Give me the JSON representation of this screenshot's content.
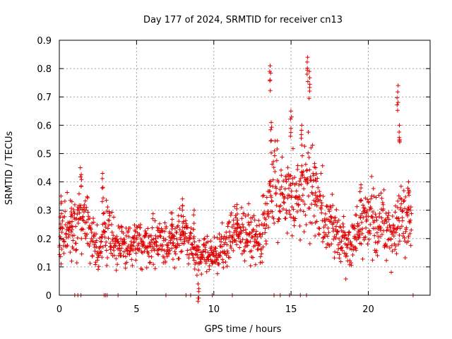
{
  "chart_data": {
    "type": "scatter",
    "title": "Day 177 of 2024, SRMTID for receiver cn13",
    "xlabel": "GPS time / hours",
    "ylabel": "SRMTID / TECUs",
    "xlim": [
      0,
      24
    ],
    "ylim": [
      0,
      0.9
    ],
    "x_ticks": [
      0,
      5,
      10,
      15,
      20
    ],
    "x_tick_labels": [
      "0",
      "5",
      "10",
      "15",
      "20"
    ],
    "y_ticks": [
      0,
      0.1,
      0.2,
      0.3,
      0.4,
      0.5,
      0.6,
      0.7,
      0.8,
      0.9
    ],
    "y_tick_labels": [
      "0",
      "0.1",
      "0.2",
      "0.3",
      "0.4",
      "0.5",
      "0.6",
      "0.7",
      "0.8",
      "0.9"
    ],
    "grid": true,
    "marker": "+",
    "series": [
      {
        "name": "SRMTID",
        "color": "#e00000",
        "profile_hours": [
          0,
          0.5,
          1.0,
          1.3,
          2.0,
          2.5,
          3.0,
          3.5,
          4.0,
          5.0,
          6.0,
          7.0,
          7.5,
          8.0,
          8.5,
          9.0,
          9.5,
          10.0,
          10.5,
          11.0,
          11.5,
          12.0,
          12.5,
          13.0,
          13.5,
          14.0,
          14.5,
          15.0,
          15.5,
          16.0,
          16.5,
          17.0,
          17.5,
          18.0,
          18.5,
          19.0,
          19.5,
          20.0,
          20.5,
          21.0,
          21.5,
          22.0,
          22.5,
          22.8
        ],
        "profile_median": [
          0.21,
          0.24,
          0.22,
          0.27,
          0.22,
          0.15,
          0.23,
          0.2,
          0.17,
          0.18,
          0.19,
          0.18,
          0.19,
          0.21,
          0.17,
          0.14,
          0.15,
          0.14,
          0.16,
          0.21,
          0.23,
          0.22,
          0.2,
          0.2,
          0.31,
          0.42,
          0.36,
          0.34,
          0.37,
          0.38,
          0.36,
          0.28,
          0.25,
          0.21,
          0.17,
          0.2,
          0.24,
          0.27,
          0.27,
          0.26,
          0.2,
          0.3,
          0.25,
          0.24
        ],
        "peaks": [
          {
            "x": 0.1,
            "y": 0.35
          },
          {
            "x": 0.8,
            "y": 0.33
          },
          {
            "x": 1.4,
            "y": 0.45
          },
          {
            "x": 2.8,
            "y": 0.43
          },
          {
            "x": 7.3,
            "y": 0.29
          },
          {
            "x": 8.0,
            "y": 0.34
          },
          {
            "x": 8.7,
            "y": 0.3
          },
          {
            "x": 9.0,
            "y": 0.04
          },
          {
            "x": 11.5,
            "y": 0.32
          },
          {
            "x": 13.65,
            "y": 0.81
          },
          {
            "x": 13.7,
            "y": 0.61
          },
          {
            "x": 15.0,
            "y": 0.65
          },
          {
            "x": 15.7,
            "y": 0.6
          },
          {
            "x": 16.05,
            "y": 0.84
          },
          {
            "x": 16.2,
            "y": 0.79
          },
          {
            "x": 16.6,
            "y": 0.45
          },
          {
            "x": 19.5,
            "y": 0.39
          },
          {
            "x": 21.9,
            "y": 0.74
          },
          {
            "x": 22.0,
            "y": 0.6
          },
          {
            "x": 22.6,
            "y": 0.4
          }
        ],
        "zero_points_hours": [
          1.0,
          1.2,
          1.4,
          2.9,
          3.0,
          3.1,
          3.8,
          6.9,
          8.2,
          8.5,
          9.9,
          11.2,
          13.9,
          14.3,
          14.9,
          15.6,
          16.0,
          22.9
        ]
      }
    ]
  }
}
